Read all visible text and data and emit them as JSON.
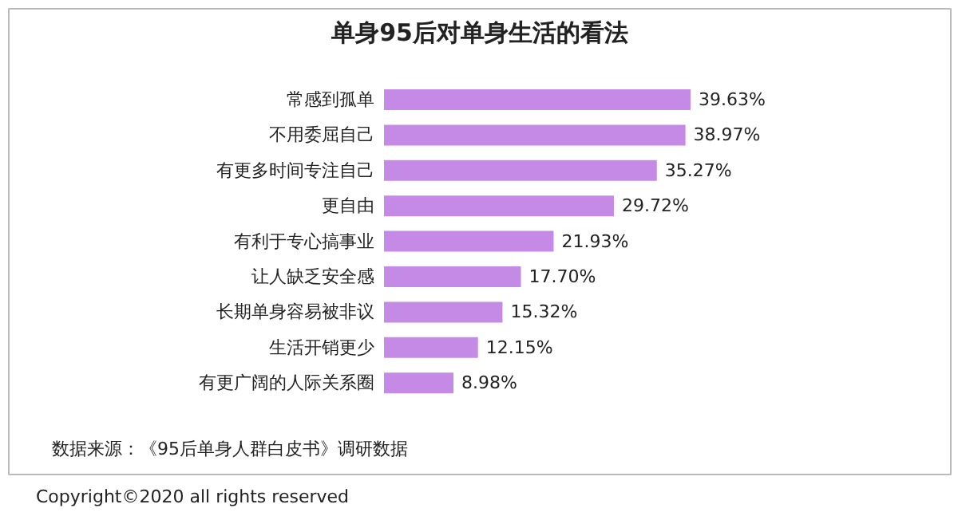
{
  "chart_data": {
    "type": "bar",
    "orientation": "horizontal",
    "title": "单身95后对单身生活的看法",
    "categories": [
      "常感到孤单",
      "不用委屈自己",
      "有更多时间专注自己",
      "更自由",
      "有利于专心搞事业",
      "让人缺乏安全感",
      "长期单身容易被非议",
      "生活开销更少",
      "有更广阔的人际关系圈"
    ],
    "values": [
      39.63,
      38.97,
      35.27,
      29.72,
      21.93,
      17.7,
      15.32,
      12.15,
      8.98
    ],
    "value_labels": [
      "39.63%",
      "38.97%",
      "35.27%",
      "29.72%",
      "21.93%",
      "17.70%",
      "15.32%",
      "12.15%",
      "8.98%"
    ],
    "color": "#c48ae6",
    "annotations": [
      "数据来源：《95后单身人群白皮书》调研数据",
      "Copyright©2020 all rights reserved"
    ]
  }
}
